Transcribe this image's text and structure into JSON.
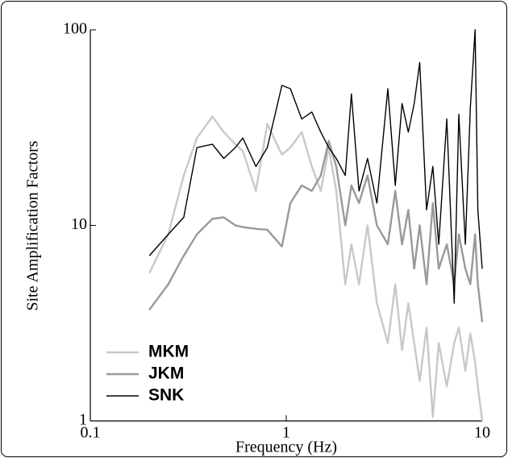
{
  "chart_data": {
    "type": "line",
    "xlabel": "Frequency (Hz)",
    "ylabel": "Site Amplification Factors",
    "xlog": true,
    "ylog": true,
    "xlim": [
      0.1,
      10
    ],
    "ylim": [
      1,
      100
    ],
    "xticks": [
      0.1,
      1,
      10
    ],
    "yticks": [
      1,
      10,
      100
    ],
    "legend": "lower left",
    "x": [
      0.2,
      0.25,
      0.3,
      0.35,
      0.42,
      0.48,
      0.55,
      0.6,
      0.7,
      0.8,
      0.95,
      1.05,
      1.2,
      1.35,
      1.5,
      1.65,
      1.8,
      2.0,
      2.15,
      2.35,
      2.6,
      2.9,
      3.3,
      3.6,
      3.9,
      4.2,
      4.5,
      4.8,
      5.2,
      5.6,
      6.0,
      6.6,
      7.2,
      7.6,
      8.2,
      8.7,
      9.2,
      9.5,
      10
    ],
    "series": [
      {
        "name": "MKM",
        "color": "#c8c8c8",
        "values": [
          5.7,
          9,
          18,
          28,
          36,
          30,
          26,
          24,
          15,
          33,
          23,
          25,
          30,
          20,
          15,
          25,
          15,
          5,
          8,
          5,
          10,
          4,
          2.5,
          5,
          2.3,
          4,
          2.5,
          1.6,
          3,
          1.05,
          2.5,
          1.5,
          2.5,
          3,
          1.8,
          2.8,
          2,
          1.5,
          1
        ]
      },
      {
        "name": "JKM",
        "color": "#999999",
        "values": [
          3.7,
          5,
          7,
          9,
          10.8,
          11,
          10,
          9.8,
          9.6,
          9.5,
          7.8,
          13,
          16,
          15,
          18,
          27,
          20,
          10,
          16,
          13,
          18,
          10,
          8,
          15,
          8,
          12,
          6,
          10,
          5,
          13,
          6,
          8,
          5,
          9,
          6,
          5,
          9,
          5,
          3.2
        ]
      },
      {
        "name": "SNK",
        "color": "#000000",
        "values": [
          7,
          9,
          11,
          25,
          26,
          22,
          25,
          28,
          20,
          25,
          52,
          50,
          35,
          38,
          30,
          25,
          22,
          18,
          47,
          15,
          22,
          13,
          50,
          16,
          42,
          30,
          42,
          68,
          12,
          20,
          8,
          35,
          4,
          37,
          8,
          40,
          100,
          12,
          6
        ]
      }
    ]
  }
}
